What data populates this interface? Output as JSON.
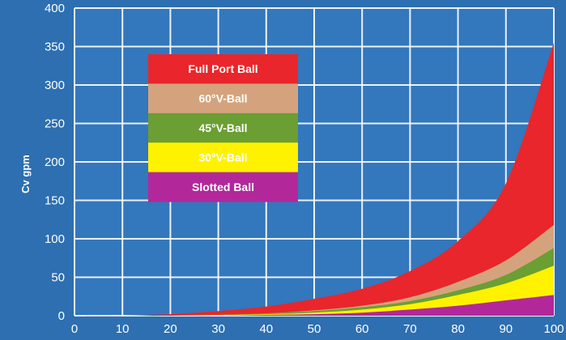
{
  "chart_data": {
    "type": "area",
    "title": "",
    "xlabel": "",
    "ylabel": "Cv gpm",
    "xlim": [
      0,
      100
    ],
    "ylim": [
      0,
      400
    ],
    "x_ticks": [
      "0",
      "10",
      "20",
      "30",
      "40",
      "50",
      "60",
      "70",
      "80",
      "90",
      "100"
    ],
    "y_ticks": [
      "0",
      "50",
      "100",
      "150",
      "200",
      "250",
      "300",
      "350",
      "400"
    ],
    "grid": true,
    "legend_position": "upper-left",
    "x": [
      0,
      10,
      20,
      30,
      40,
      50,
      60,
      70,
      80,
      90,
      100
    ],
    "series": [
      {
        "name": "Full Port Ball",
        "color": "#e8262b",
        "values": [
          0,
          0,
          2,
          6,
          12,
          22,
          35,
          58,
          97,
          172,
          355
        ]
      },
      {
        "name": "60°V-Ball",
        "color": "#d4a37d",
        "values": [
          0,
          0,
          0,
          1,
          3,
          7,
          13,
          24,
          44,
          72,
          118
        ]
      },
      {
        "name": "45°V-Ball",
        "color": "#6b9e33",
        "values": [
          0,
          0,
          0,
          1,
          3,
          6,
          11,
          19,
          33,
          53,
          88
        ]
      },
      {
        "name": "30°V-Ball",
        "color": "#fff200",
        "values": [
          0,
          0,
          0,
          1,
          2,
          4,
          8,
          15,
          27,
          42,
          65
        ]
      },
      {
        "name": "Slotted Ball",
        "color": "#b2289a",
        "values": [
          0,
          0,
          0,
          0,
          1,
          2,
          4,
          8,
          13,
          20,
          27
        ]
      }
    ]
  },
  "colors": {
    "background": "#2d6fb0",
    "grid": "#ffffff"
  }
}
